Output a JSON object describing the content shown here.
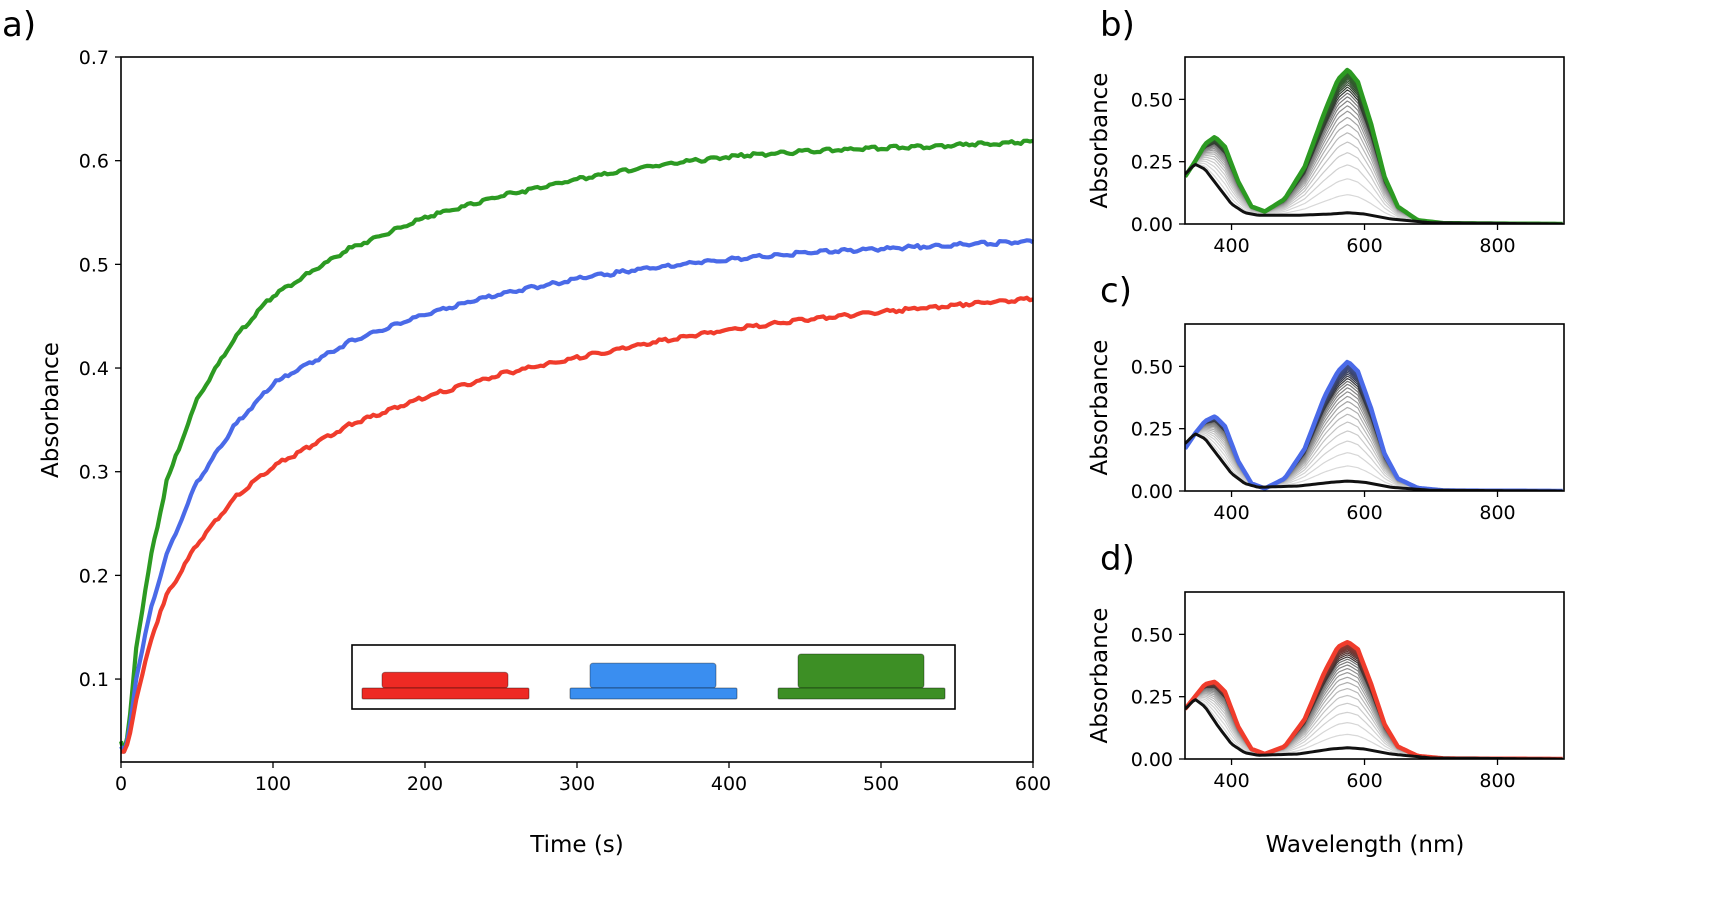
{
  "colors": {
    "red": "#f03c2c",
    "blue": "#4a6ae8",
    "green": "#2c9a22",
    "black": "#111111",
    "grey": "#9a9a9a",
    "legend_red": "#ee2a24",
    "legend_blue": "#3a8ef0",
    "legend_green": "#3d8f25"
  },
  "chart_data": [
    {
      "type": "line",
      "panel_label": "a)",
      "xlabel": "Time (s)",
      "ylabel": "Absorbance",
      "xlim": [
        0,
        600
      ],
      "ylim": [
        0.02,
        0.7
      ],
      "xticks": [
        0,
        100,
        200,
        300,
        400,
        500,
        600
      ],
      "yticks": [
        0.1,
        0.2,
        0.3,
        0.4,
        0.5,
        0.6,
        0.7
      ],
      "x": [
        0,
        2,
        5,
        10,
        20,
        30,
        50,
        75,
        100,
        150,
        200,
        250,
        300,
        350,
        400,
        450,
        500,
        550,
        600
      ],
      "series": [
        {
          "color": "green",
          "values": [
            0.04,
            0.03,
            0.05,
            0.13,
            0.22,
            0.29,
            0.37,
            0.43,
            0.47,
            0.515,
            0.545,
            0.566,
            0.582,
            0.595,
            0.604,
            0.609,
            0.612,
            0.615,
            0.618
          ]
        },
        {
          "color": "blue",
          "values": [
            0.035,
            0.03,
            0.045,
            0.1,
            0.17,
            0.22,
            0.29,
            0.345,
            0.385,
            0.425,
            0.452,
            0.472,
            0.486,
            0.497,
            0.505,
            0.511,
            0.515,
            0.519,
            0.522
          ]
        },
        {
          "color": "red",
          "values": [
            0.03,
            0.03,
            0.04,
            0.08,
            0.14,
            0.18,
            0.23,
            0.275,
            0.305,
            0.345,
            0.372,
            0.394,
            0.41,
            0.425,
            0.437,
            0.447,
            0.454,
            0.461,
            0.467
          ]
        }
      ],
      "legend": {
        "placement": "lower-right",
        "entries": [
          {
            "color": "legend_red",
            "relative_height": 0.3
          },
          {
            "color": "legend_blue",
            "relative_height": 0.65
          },
          {
            "color": "legend_green",
            "relative_height": 1.0
          }
        ]
      }
    },
    {
      "type": "line",
      "panel_label": "b)",
      "xlabel": "",
      "ylabel": "Absorbance",
      "xlim": [
        330,
        900
      ],
      "ylim": [
        0,
        0.67
      ],
      "xticks": [
        400,
        600,
        800
      ],
      "yticks": [
        0.0,
        0.25,
        0.5
      ],
      "ytick_labels": [
        "0.00",
        "0.25",
        "0.50"
      ],
      "final_color": "green",
      "initial_spectrum": {
        "x": [
          330,
          345,
          360,
          380,
          400,
          420,
          440,
          500,
          550,
          575,
          600,
          640,
          700,
          900
        ],
        "y": [
          0.2,
          0.24,
          0.22,
          0.15,
          0.08,
          0.045,
          0.035,
          0.035,
          0.04,
          0.045,
          0.04,
          0.02,
          0.005,
          0.0
        ]
      },
      "final_spectrum": {
        "x": [
          330,
          345,
          360,
          375,
          390,
          410,
          430,
          450,
          480,
          510,
          540,
          560,
          575,
          590,
          610,
          630,
          650,
          680,
          720,
          900
        ],
        "y": [
          0.19,
          0.25,
          0.32,
          0.35,
          0.31,
          0.17,
          0.07,
          0.05,
          0.1,
          0.23,
          0.45,
          0.58,
          0.62,
          0.57,
          0.4,
          0.19,
          0.07,
          0.015,
          0.003,
          0.0
        ]
      }
    },
    {
      "type": "line",
      "panel_label": "c)",
      "xlabel": "",
      "ylabel": "Absorbance",
      "xlim": [
        330,
        900
      ],
      "ylim": [
        0,
        0.67
      ],
      "xticks": [
        400,
        600,
        800
      ],
      "yticks": [
        0.0,
        0.25,
        0.5
      ],
      "ytick_labels": [
        "0.00",
        "0.25",
        "0.50"
      ],
      "final_color": "blue",
      "initial_spectrum": {
        "x": [
          330,
          345,
          360,
          380,
          400,
          420,
          440,
          500,
          550,
          575,
          600,
          640,
          700,
          900
        ],
        "y": [
          0.19,
          0.23,
          0.21,
          0.14,
          0.07,
          0.03,
          0.015,
          0.02,
          0.035,
          0.04,
          0.035,
          0.015,
          0.003,
          0.0
        ]
      },
      "final_spectrum": {
        "x": [
          330,
          345,
          360,
          375,
          390,
          410,
          430,
          450,
          480,
          510,
          540,
          560,
          575,
          590,
          610,
          630,
          650,
          680,
          720,
          900
        ],
        "y": [
          0.17,
          0.23,
          0.28,
          0.3,
          0.26,
          0.12,
          0.03,
          0.01,
          0.05,
          0.17,
          0.38,
          0.48,
          0.52,
          0.48,
          0.33,
          0.15,
          0.05,
          0.012,
          0.002,
          0.0
        ]
      }
    },
    {
      "type": "line",
      "panel_label": "d)",
      "xlabel": "Wavelength (nm)",
      "ylabel": "Absorbance",
      "xlim": [
        330,
        900
      ],
      "ylim": [
        0,
        0.67
      ],
      "xticks": [
        400,
        600,
        800
      ],
      "yticks": [
        0.0,
        0.25,
        0.5
      ],
      "ytick_labels": [
        "0.00",
        "0.25",
        "0.50"
      ],
      "final_color": "red",
      "initial_spectrum": {
        "x": [
          330,
          345,
          360,
          380,
          400,
          420,
          440,
          500,
          550,
          575,
          600,
          640,
          700,
          900
        ],
        "y": [
          0.2,
          0.24,
          0.21,
          0.13,
          0.06,
          0.025,
          0.015,
          0.02,
          0.04,
          0.045,
          0.04,
          0.02,
          0.004,
          0.0
        ]
      },
      "final_spectrum": {
        "x": [
          330,
          345,
          360,
          375,
          390,
          410,
          430,
          450,
          480,
          510,
          540,
          560,
          575,
          590,
          610,
          630,
          650,
          680,
          720,
          900
        ],
        "y": [
          0.2,
          0.25,
          0.3,
          0.31,
          0.27,
          0.13,
          0.04,
          0.02,
          0.05,
          0.16,
          0.35,
          0.45,
          0.47,
          0.44,
          0.3,
          0.14,
          0.05,
          0.012,
          0.002,
          0.0
        ]
      }
    }
  ]
}
